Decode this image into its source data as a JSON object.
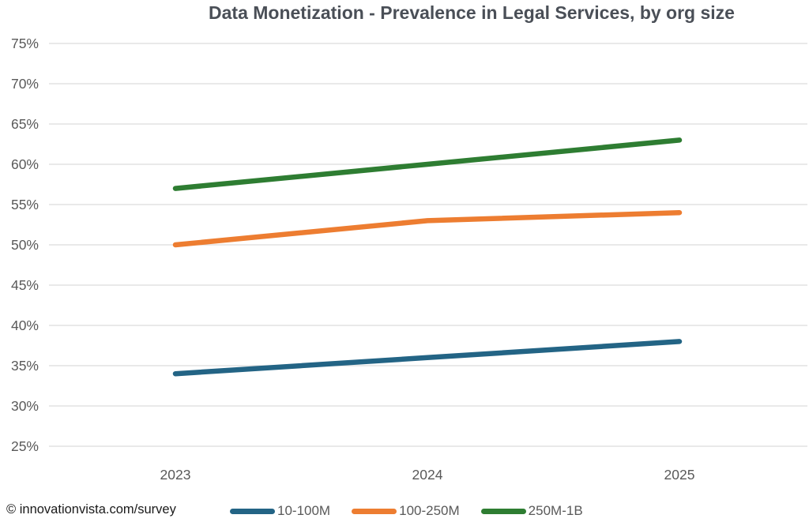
{
  "chart_data": {
    "type": "line",
    "title": "Data Monetization - Prevalence in Legal Services, by org size",
    "x": [
      "2023",
      "2024",
      "2025"
    ],
    "series": [
      {
        "name": "10-100M",
        "color": "#236485",
        "values": [
          34,
          36,
          38
        ]
      },
      {
        "name": "100-250M",
        "color": "#ed7d31",
        "values": [
          50,
          53,
          54
        ]
      },
      {
        "name": "250M-1B",
        "color": "#2e7d32",
        "values": [
          57,
          60,
          63
        ]
      }
    ],
    "ylim": [
      25,
      75
    ],
    "y_tick_labels": [
      "75%",
      "70%",
      "65%",
      "60%",
      "55%",
      "50%",
      "45%",
      "40%",
      "35%",
      "30%",
      "25%"
    ],
    "y_tick_values": [
      75,
      70,
      65,
      60,
      55,
      50,
      45,
      40,
      35,
      30,
      25
    ],
    "xlabel": "",
    "ylabel": "",
    "grid": "horizontal",
    "gridline_color": "#dcdcdc",
    "axis_label_color": "#595959",
    "legend_position": "bottom"
  },
  "footer": {
    "attribution": "© innovationvista.com/survey"
  }
}
